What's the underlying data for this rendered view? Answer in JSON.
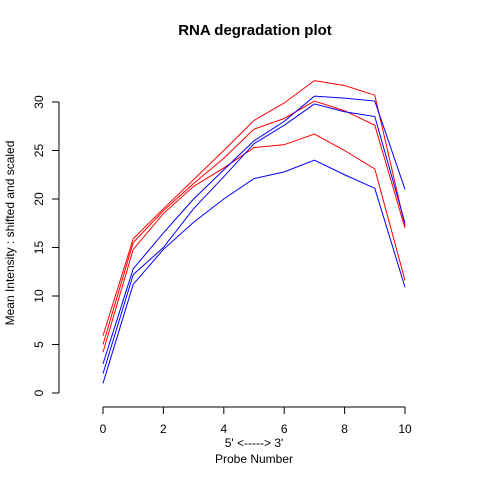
{
  "chart_data": {
    "type": "line",
    "title": "RNA degradation plot",
    "xlabel_line1": "5' <-----> 3'",
    "xlabel_line2": "Probe Number",
    "ylabel": "Mean Intensity : shifted and scaled",
    "xlim": [
      0,
      10
    ],
    "ylim": [
      0,
      30
    ],
    "x_ticks": [
      0,
      2,
      4,
      6,
      8,
      10
    ],
    "y_ticks": [
      0,
      5,
      10,
      15,
      20,
      25,
      30
    ],
    "x": [
      0,
      1,
      2,
      3,
      4,
      5,
      6,
      7,
      8,
      9,
      10
    ],
    "series": [
      {
        "color": "#ff0000",
        "values": [
          5.9,
          15.9,
          19.0,
          22.0,
          25.0,
          28.1,
          29.9,
          32.2,
          31.7,
          30.7,
          17.2
        ]
      },
      {
        "color": "#ff0000",
        "values": [
          5.0,
          15.5,
          18.8,
          21.6,
          24.2,
          27.2,
          28.3,
          30.1,
          29.1,
          27.6,
          17.0
        ]
      },
      {
        "color": "#ff0000",
        "values": [
          4.2,
          14.8,
          18.5,
          21.3,
          23.2,
          25.3,
          25.6,
          26.7,
          25.0,
          23.1,
          11.6
        ]
      },
      {
        "color": "#0000ff",
        "values": [
          3.0,
          12.8,
          16.5,
          20.0,
          23.0,
          26.0,
          28.0,
          30.6,
          30.4,
          30.1,
          21.0
        ]
      },
      {
        "color": "#0000ff",
        "values": [
          2.0,
          12.2,
          15.0,
          19.0,
          22.3,
          25.7,
          27.6,
          29.8,
          29.0,
          28.5,
          17.5
        ]
      },
      {
        "color": "#0000ff",
        "values": [
          1.0,
          11.2,
          14.8,
          17.6,
          20.0,
          22.1,
          22.8,
          24.0,
          22.5,
          21.1,
          10.9
        ]
      }
    ]
  }
}
